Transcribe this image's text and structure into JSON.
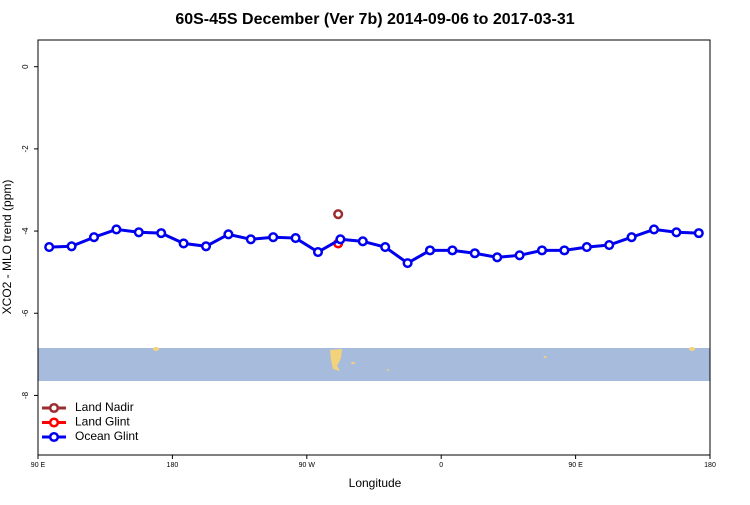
{
  "chart_data": {
    "type": "line",
    "title": "60S-45S December (Ver 7b)   2014-09-06 to 2017-03-31",
    "x_label": "Longitude",
    "y_label": "XCO2 - MLO trend (ppm)",
    "xlim": [
      90,
      540
    ],
    "ylim": [
      -9.45,
      0.65
    ],
    "xticks": [
      {
        "value": 90,
        "label": "90 E"
      },
      {
        "value": 180,
        "label": "180"
      },
      {
        "value": 270,
        "label": "90 W"
      },
      {
        "value": 360,
        "label": "0"
      },
      {
        "value": 450,
        "label": "90 E"
      },
      {
        "value": 540,
        "label": "180"
      }
    ],
    "yticks": [
      0,
      -2,
      -4,
      -6,
      -8
    ],
    "legend": "bottom-left",
    "series": [
      {
        "name": "Land Nadir",
        "color": "#9b2d30",
        "x": [
          291
        ],
        "values": [
          -3.59
        ]
      },
      {
        "name": "Land Glint",
        "color": "#ff0000",
        "x": [
          291
        ],
        "values": [
          -4.3
        ]
      },
      {
        "name": "Ocean Glint",
        "color": "#0000ee",
        "x": [
          97.5,
          112.5,
          127.5,
          142.5,
          157.5,
          172.5,
          187.5,
          202.5,
          217.5,
          232.5,
          247.5,
          262.5,
          277.5,
          292.5,
          307.5,
          322.5,
          337.5,
          352.5,
          367.5,
          382.5,
          397.5,
          412.5,
          427.5,
          442.5,
          457.5,
          472.5,
          487.5,
          502.5,
          517.5,
          532.5
        ],
        "values": [
          -4.39,
          -4.37,
          -4.15,
          -3.96,
          -4.03,
          -4.05,
          -4.3,
          -4.37,
          -4.08,
          -4.2,
          -4.15,
          -4.17,
          -4.51,
          -4.2,
          -4.25,
          -4.39,
          -4.78,
          -4.47,
          -4.47,
          -4.54,
          -4.64,
          -4.59,
          -4.47,
          -4.47,
          -4.39,
          -4.34,
          -4.15,
          -3.96,
          -4.03,
          -4.05
        ]
      }
    ]
  }
}
